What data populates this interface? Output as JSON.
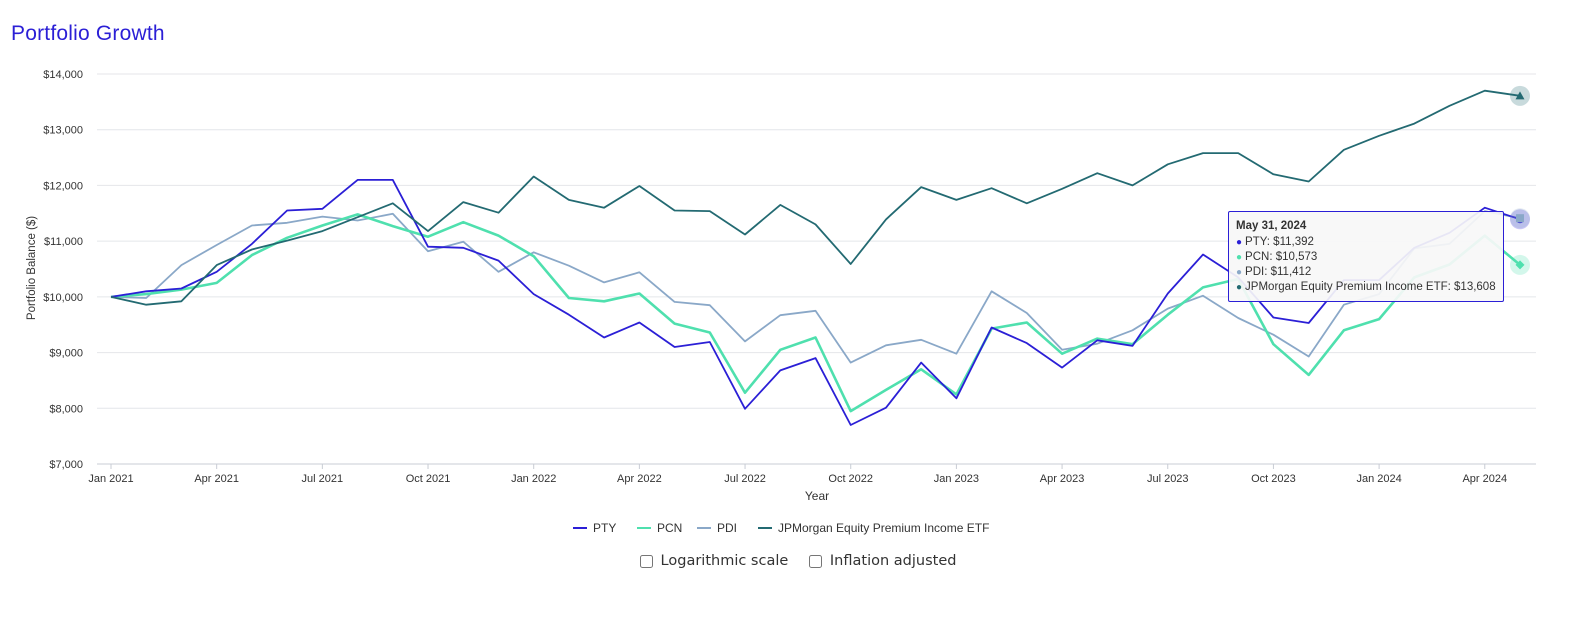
{
  "title": "Portfolio Growth",
  "controls": {
    "log_label": "Logarithmic scale",
    "inflation_label": "Inflation adjusted"
  },
  "tooltip": {
    "date": "May 31, 2024",
    "rows": [
      {
        "label": "PTY: $11,392",
        "color": "#2b1fd6"
      },
      {
        "label": "PCN: $10,573",
        "color": "#4fe0ae"
      },
      {
        "label": "PDI: $11,412",
        "color": "#8aa8c8"
      },
      {
        "label": "JPMorgan Equity Premium Income ETF: $13,608",
        "color": "#236a72"
      }
    ]
  },
  "chart_data": {
    "type": "line",
    "title": "",
    "xlabel": "Year",
    "ylabel": "Portfolio Balance ($)",
    "ylim": [
      7000,
      14000
    ],
    "yticks": [
      7000,
      8000,
      9000,
      10000,
      11000,
      12000,
      13000,
      14000
    ],
    "ytick_labels": [
      "$7,000",
      "$8,000",
      "$9,000",
      "$10,000",
      "$11,000",
      "$12,000",
      "$13,000",
      "$14,000"
    ],
    "xtick_labels": [
      "Jan 2021",
      "Apr 2021",
      "Jul 2021",
      "Oct 2021",
      "Jan 2022",
      "Apr 2022",
      "Jul 2022",
      "Oct 2022",
      "Jan 2023",
      "Apr 2023",
      "Jul 2023",
      "Oct 2023",
      "Jan 2024",
      "Apr 2024"
    ],
    "xtick_index": [
      0,
      3,
      6,
      9,
      12,
      15,
      18,
      21,
      24,
      27,
      30,
      33,
      36,
      39
    ],
    "x": [
      "Jan 2021",
      "Feb 2021",
      "Mar 2021",
      "Apr 2021",
      "May 2021",
      "Jun 2021",
      "Jul 2021",
      "Aug 2021",
      "Sep 2021",
      "Oct 2021",
      "Nov 2021",
      "Dec 2021",
      "Jan 2022",
      "Feb 2022",
      "Mar 2022",
      "Apr 2022",
      "May 2022",
      "Jun 2022",
      "Jul 2022",
      "Aug 2022",
      "Sep 2022",
      "Oct 2022",
      "Nov 2022",
      "Dec 2022",
      "Jan 2023",
      "Feb 2023",
      "Mar 2023",
      "Apr 2023",
      "May 2023",
      "Jun 2023",
      "Jul 2023",
      "Aug 2023",
      "Sep 2023",
      "Oct 2023",
      "Nov 2023",
      "Dec 2023",
      "Jan 2024",
      "Feb 2024",
      "Mar 2024",
      "Apr 2024",
      "May 2024"
    ],
    "grid": true,
    "legend_position": "bottom",
    "series": [
      {
        "name": "PTY",
        "color": "#2b1fd6",
        "width": 1.8,
        "values": [
          10000,
          10100,
          10150,
          10450,
          10950,
          11550,
          11580,
          12100,
          12100,
          10900,
          10880,
          10650,
          10050,
          9680,
          9270,
          9540,
          9100,
          9190,
          7990,
          8680,
          8900,
          7700,
          8010,
          8820,
          8180,
          9450,
          9170,
          8730,
          9220,
          9120,
          10060,
          10760,
          10350,
          9630,
          9530,
          10300,
          10300,
          10880,
          11150,
          11600,
          11392
        ]
      },
      {
        "name": "PCN",
        "color": "#4fe0ae",
        "width": 2.6,
        "values": [
          10000,
          10050,
          10130,
          10250,
          10750,
          11060,
          11280,
          11480,
          11270,
          11080,
          11340,
          11100,
          10730,
          9980,
          9920,
          10060,
          9520,
          9360,
          8280,
          9050,
          9270,
          7950,
          8330,
          8700,
          8250,
          9430,
          9540,
          8980,
          9250,
          9150,
          9680,
          10170,
          10320,
          9150,
          8600,
          9400,
          9600,
          10350,
          10580,
          11100,
          10573
        ]
      },
      {
        "name": "PDI",
        "color": "#8aa8c8",
        "width": 1.8,
        "values": [
          10000,
          9980,
          10570,
          10930,
          11280,
          11330,
          11440,
          11370,
          11490,
          10820,
          10990,
          10450,
          10800,
          10560,
          10260,
          10440,
          9910,
          9850,
          9200,
          9670,
          9750,
          8820,
          9130,
          9230,
          8980,
          10100,
          9710,
          9050,
          9160,
          9400,
          9790,
          10020,
          9620,
          9320,
          8930,
          9860,
          10050,
          10870,
          10950,
          11540,
          11412
        ]
      },
      {
        "name": "JPMorgan Equity Premium Income ETF",
        "color": "#236a72",
        "width": 1.8,
        "values": [
          10000,
          9860,
          9920,
          10570,
          10850,
          11010,
          11180,
          11430,
          11680,
          11180,
          11700,
          11510,
          12160,
          11740,
          11600,
          11990,
          11550,
          11540,
          11120,
          11650,
          11300,
          10590,
          11390,
          11970,
          11740,
          11950,
          11680,
          11940,
          12220,
          12000,
          12380,
          12580,
          12580,
          12200,
          12070,
          12640,
          12890,
          13110,
          13430,
          13700,
          13608
        ]
      }
    ]
  }
}
